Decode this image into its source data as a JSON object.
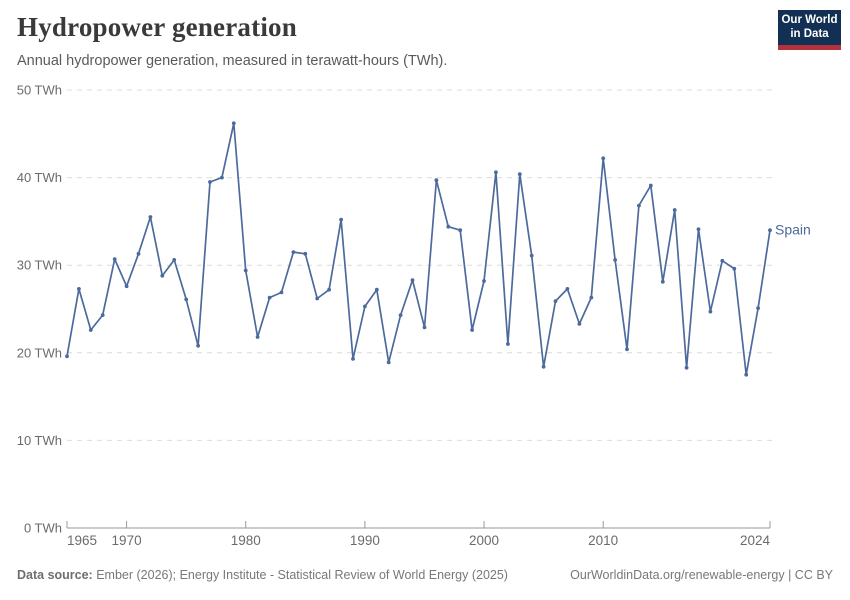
{
  "header": {
    "title": "Hydropower generation",
    "subtitle": "Annual hydropower generation, measured in terawatt-hours (TWh)."
  },
  "logo": {
    "line1": "Our World",
    "line2": "in Data"
  },
  "colors": {
    "line": "#4C6A9C",
    "logo_navy": "#122F54",
    "logo_red": "#B4323C",
    "grid": "#dcdcdc",
    "axis": "#9a9a9a"
  },
  "chart_data": {
    "type": "line",
    "title": "Hydropower generation",
    "subtitle": "Annual hydropower generation, measured in terawatt-hours (TWh).",
    "unit": "TWh",
    "xlim": [
      1965,
      2024
    ],
    "ylim": [
      0,
      50
    ],
    "grid": "dashed-horizontal",
    "legend_position": "end-of-line-label",
    "x_ticks": [
      1965,
      1970,
      1980,
      1990,
      2000,
      2010,
      2024
    ],
    "y_ticks": [
      0,
      10,
      20,
      30,
      40,
      50
    ],
    "series": [
      {
        "name": "Spain",
        "x": [
          1965,
          1966,
          1967,
          1968,
          1969,
          1970,
          1971,
          1972,
          1973,
          1974,
          1975,
          1976,
          1977,
          1978,
          1979,
          1980,
          1981,
          1982,
          1983,
          1984,
          1985,
          1986,
          1987,
          1988,
          1989,
          1990,
          1991,
          1992,
          1993,
          1994,
          1995,
          1996,
          1997,
          1998,
          1999,
          2000,
          2001,
          2002,
          2003,
          2004,
          2005,
          2006,
          2007,
          2008,
          2009,
          2010,
          2011,
          2012,
          2013,
          2014,
          2015,
          2016,
          2017,
          2018,
          2019,
          2020,
          2021,
          2022,
          2023,
          2024
        ],
        "values": [
          19.6,
          27.3,
          22.6,
          24.3,
          30.7,
          27.6,
          31.3,
          35.5,
          28.8,
          30.6,
          26.1,
          20.8,
          39.5,
          40.0,
          46.2,
          29.4,
          21.8,
          26.3,
          26.9,
          31.5,
          31.3,
          26.2,
          27.2,
          35.2,
          19.3,
          25.3,
          27.2,
          18.9,
          24.3,
          28.3,
          22.9,
          39.7,
          34.4,
          34.0,
          22.6,
          28.2,
          40.6,
          21.0,
          40.4,
          31.1,
          18.4,
          25.9,
          27.3,
          23.3,
          26.3,
          42.2,
          30.6,
          20.4,
          36.8,
          39.1,
          28.1,
          36.3,
          18.3,
          34.1,
          24.7,
          30.5,
          29.6,
          17.5,
          25.1,
          34.0
        ]
      }
    ]
  },
  "footer": {
    "source_label": "Data source:",
    "source_text": "Ember (2026); Energy Institute - Statistical Review of World Energy (2025)",
    "right": "OurWorldinData.org/renewable-energy | CC BY"
  }
}
